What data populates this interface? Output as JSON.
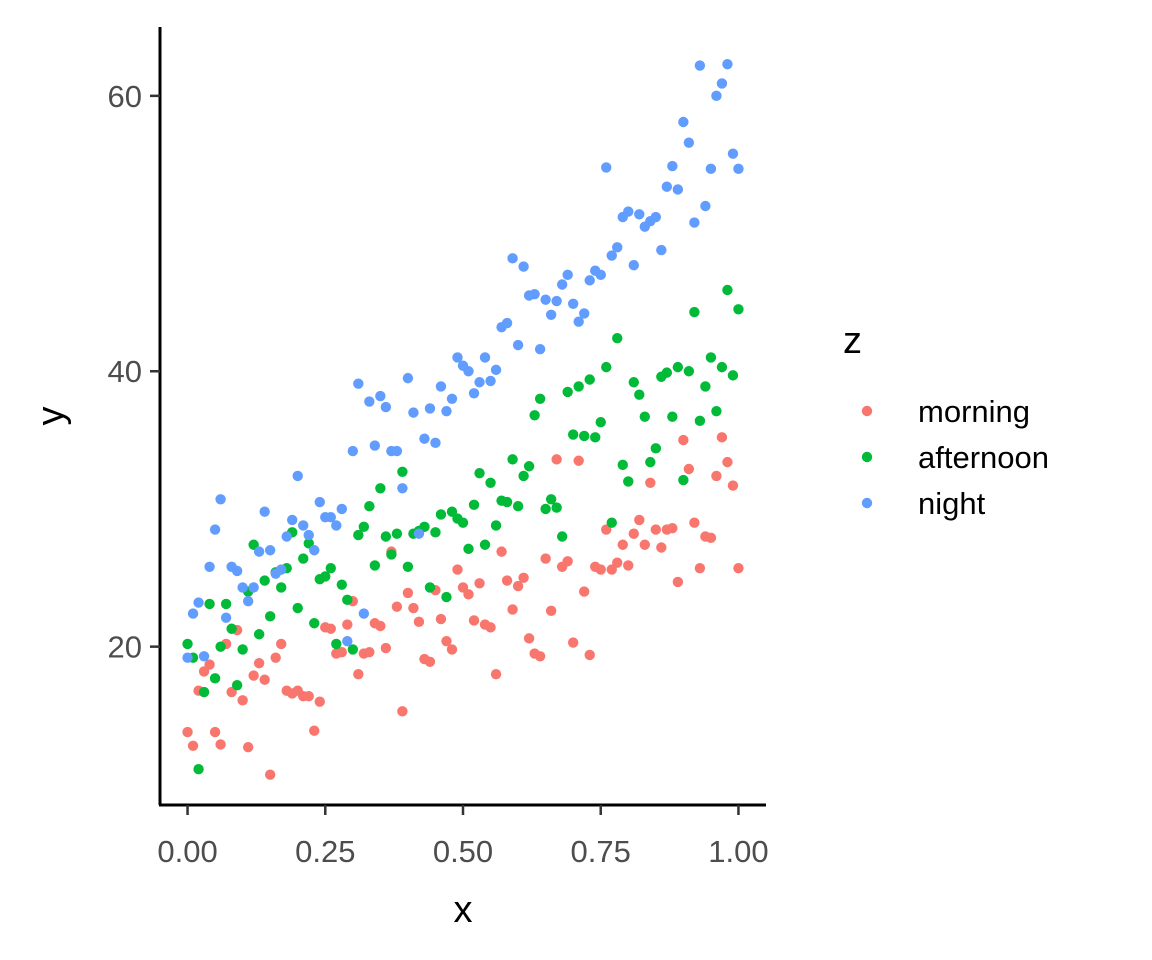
{
  "chart_data": {
    "type": "scatter",
    "xlabel": "x",
    "ylabel": "y",
    "xlim": [
      -0.05,
      1.05
    ],
    "ylim": [
      8.5,
      65
    ],
    "x_ticks": [
      0,
      0.25,
      0.5,
      0.75,
      1
    ],
    "x_tick_labels": [
      "0.00",
      "0.25",
      "0.50",
      "0.75",
      "1.00"
    ],
    "y_ticks": [
      20,
      40,
      60
    ],
    "y_tick_labels": [
      "20",
      "40",
      "60"
    ],
    "grid": false,
    "legend": {
      "title": "z",
      "position": "right",
      "entries": [
        "morning",
        "afternoon",
        "night"
      ]
    },
    "series": [
      {
        "name": "morning",
        "color": "#F8766D",
        "points": [
          [
            0.0,
            13.8
          ],
          [
            0.01,
            12.8
          ],
          [
            0.02,
            16.8
          ],
          [
            0.03,
            18.2
          ],
          [
            0.04,
            18.7
          ],
          [
            0.05,
            13.8
          ],
          [
            0.06,
            12.9
          ],
          [
            0.07,
            20.2
          ],
          [
            0.08,
            16.7
          ],
          [
            0.09,
            21.2
          ],
          [
            0.1,
            16.1
          ],
          [
            0.11,
            12.7
          ],
          [
            0.12,
            17.9
          ],
          [
            0.13,
            18.8
          ],
          [
            0.14,
            17.6
          ],
          [
            0.15,
            10.7
          ],
          [
            0.16,
            19.2
          ],
          [
            0.17,
            20.2
          ],
          [
            0.18,
            16.8
          ],
          [
            0.19,
            16.6
          ],
          [
            0.2,
            16.8
          ],
          [
            0.21,
            16.4
          ],
          [
            0.22,
            16.4
          ],
          [
            0.23,
            13.9
          ],
          [
            0.24,
            16.0
          ],
          [
            0.25,
            21.4
          ],
          [
            0.26,
            21.3
          ],
          [
            0.27,
            19.5
          ],
          [
            0.28,
            19.6
          ],
          [
            0.29,
            21.6
          ],
          [
            0.3,
            23.3
          ],
          [
            0.31,
            18.0
          ],
          [
            0.32,
            19.5
          ],
          [
            0.33,
            19.6
          ],
          [
            0.34,
            21.7
          ],
          [
            0.35,
            21.5
          ],
          [
            0.36,
            19.9
          ],
          [
            0.37,
            26.9
          ],
          [
            0.38,
            22.9
          ],
          [
            0.39,
            15.3
          ],
          [
            0.4,
            23.9
          ],
          [
            0.41,
            22.8
          ],
          [
            0.42,
            21.8
          ],
          [
            0.43,
            19.1
          ],
          [
            0.44,
            18.9
          ],
          [
            0.45,
            24.1
          ],
          [
            0.46,
            22.0
          ],
          [
            0.47,
            20.4
          ],
          [
            0.48,
            19.8
          ],
          [
            0.49,
            25.6
          ],
          [
            0.5,
            24.3
          ],
          [
            0.51,
            23.8
          ],
          [
            0.52,
            21.9
          ],
          [
            0.53,
            24.6
          ],
          [
            0.54,
            21.6
          ],
          [
            0.55,
            21.4
          ],
          [
            0.56,
            18.0
          ],
          [
            0.57,
            26.9
          ],
          [
            0.58,
            24.8
          ],
          [
            0.59,
            22.7
          ],
          [
            0.6,
            24.4
          ],
          [
            0.61,
            25.0
          ],
          [
            0.62,
            20.6
          ],
          [
            0.63,
            19.5
          ],
          [
            0.64,
            19.3
          ],
          [
            0.65,
            26.4
          ],
          [
            0.66,
            22.6
          ],
          [
            0.67,
            33.6
          ],
          [
            0.68,
            25.8
          ],
          [
            0.69,
            26.2
          ],
          [
            0.7,
            20.3
          ],
          [
            0.71,
            33.5
          ],
          [
            0.72,
            24.0
          ],
          [
            0.73,
            19.4
          ],
          [
            0.74,
            25.8
          ],
          [
            0.75,
            25.6
          ],
          [
            0.76,
            28.5
          ],
          [
            0.77,
            25.6
          ],
          [
            0.78,
            26.1
          ],
          [
            0.79,
            27.4
          ],
          [
            0.8,
            25.9
          ],
          [
            0.81,
            28.2
          ],
          [
            0.82,
            29.2
          ],
          [
            0.83,
            27.4
          ],
          [
            0.84,
            31.9
          ],
          [
            0.85,
            28.5
          ],
          [
            0.86,
            27.2
          ],
          [
            0.87,
            28.5
          ],
          [
            0.88,
            28.6
          ],
          [
            0.89,
            24.7
          ],
          [
            0.9,
            35.0
          ],
          [
            0.91,
            32.9
          ],
          [
            0.92,
            29.0
          ],
          [
            0.93,
            25.7
          ],
          [
            0.94,
            28.0
          ],
          [
            0.95,
            27.9
          ],
          [
            0.96,
            32.4
          ],
          [
            0.97,
            35.2
          ],
          [
            0.98,
            33.4
          ],
          [
            0.99,
            31.7
          ],
          [
            1.0,
            25.7
          ]
        ]
      },
      {
        "name": "afternoon",
        "color": "#00BA38",
        "points": [
          [
            0.0,
            20.2
          ],
          [
            0.01,
            19.2
          ],
          [
            0.02,
            11.1
          ],
          [
            0.03,
            16.7
          ],
          [
            0.04,
            23.1
          ],
          [
            0.05,
            17.7
          ],
          [
            0.06,
            20.0
          ],
          [
            0.07,
            23.1
          ],
          [
            0.08,
            21.3
          ],
          [
            0.09,
            17.2
          ],
          [
            0.1,
            19.8
          ],
          [
            0.11,
            24.0
          ],
          [
            0.12,
            27.4
          ],
          [
            0.13,
            20.9
          ],
          [
            0.14,
            24.8
          ],
          [
            0.15,
            22.2
          ],
          [
            0.16,
            25.4
          ],
          [
            0.17,
            24.3
          ],
          [
            0.18,
            25.7
          ],
          [
            0.19,
            28.3
          ],
          [
            0.2,
            22.8
          ],
          [
            0.21,
            26.4
          ],
          [
            0.22,
            27.5
          ],
          [
            0.23,
            21.7
          ],
          [
            0.24,
            24.9
          ],
          [
            0.25,
            25.1
          ],
          [
            0.26,
            25.7
          ],
          [
            0.27,
            20.2
          ],
          [
            0.28,
            24.5
          ],
          [
            0.29,
            23.4
          ],
          [
            0.3,
            19.8
          ],
          [
            0.31,
            28.1
          ],
          [
            0.32,
            28.7
          ],
          [
            0.33,
            30.2
          ],
          [
            0.34,
            25.9
          ],
          [
            0.35,
            31.5
          ],
          [
            0.36,
            28.0
          ],
          [
            0.37,
            26.7
          ],
          [
            0.38,
            28.2
          ],
          [
            0.39,
            32.7
          ],
          [
            0.4,
            25.8
          ],
          [
            0.41,
            28.2
          ],
          [
            0.42,
            28.4
          ],
          [
            0.43,
            28.7
          ],
          [
            0.44,
            24.3
          ],
          [
            0.45,
            28.3
          ],
          [
            0.46,
            29.6
          ],
          [
            0.47,
            23.6
          ],
          [
            0.48,
            29.8
          ],
          [
            0.49,
            29.3
          ],
          [
            0.5,
            29.0
          ],
          [
            0.51,
            27.1
          ],
          [
            0.52,
            30.3
          ],
          [
            0.53,
            32.6
          ],
          [
            0.54,
            27.4
          ],
          [
            0.55,
            31.9
          ],
          [
            0.56,
            28.8
          ],
          [
            0.57,
            30.6
          ],
          [
            0.58,
            30.5
          ],
          [
            0.59,
            33.6
          ],
          [
            0.6,
            30.2
          ],
          [
            0.61,
            32.4
          ],
          [
            0.62,
            33.1
          ],
          [
            0.63,
            36.8
          ],
          [
            0.64,
            38.0
          ],
          [
            0.65,
            30.0
          ],
          [
            0.66,
            30.7
          ],
          [
            0.67,
            30.1
          ],
          [
            0.68,
            28.0
          ],
          [
            0.69,
            38.5
          ],
          [
            0.7,
            35.4
          ],
          [
            0.71,
            38.9
          ],
          [
            0.72,
            35.3
          ],
          [
            0.73,
            39.4
          ],
          [
            0.74,
            35.2
          ],
          [
            0.75,
            36.3
          ],
          [
            0.76,
            40.3
          ],
          [
            0.77,
            29.0
          ],
          [
            0.78,
            42.4
          ],
          [
            0.79,
            33.2
          ],
          [
            0.8,
            32.0
          ],
          [
            0.81,
            39.2
          ],
          [
            0.82,
            38.3
          ],
          [
            0.83,
            36.7
          ],
          [
            0.84,
            33.4
          ],
          [
            0.85,
            34.4
          ],
          [
            0.86,
            39.6
          ],
          [
            0.87,
            39.9
          ],
          [
            0.88,
            36.7
          ],
          [
            0.89,
            40.3
          ],
          [
            0.9,
            32.1
          ],
          [
            0.91,
            40.0
          ],
          [
            0.92,
            44.3
          ],
          [
            0.93,
            36.4
          ],
          [
            0.94,
            38.9
          ],
          [
            0.95,
            41.0
          ],
          [
            0.96,
            37.1
          ],
          [
            0.97,
            40.3
          ],
          [
            0.98,
            45.9
          ],
          [
            0.99,
            39.7
          ],
          [
            1.0,
            44.5
          ]
        ]
      },
      {
        "name": "night",
        "color": "#619CFF",
        "points": [
          [
            0.0,
            19.2
          ],
          [
            0.01,
            22.4
          ],
          [
            0.02,
            23.2
          ],
          [
            0.03,
            19.3
          ],
          [
            0.04,
            25.8
          ],
          [
            0.05,
            28.5
          ],
          [
            0.06,
            30.7
          ],
          [
            0.07,
            22.1
          ],
          [
            0.08,
            25.8
          ],
          [
            0.09,
            25.5
          ],
          [
            0.1,
            24.3
          ],
          [
            0.11,
            23.3
          ],
          [
            0.12,
            24.3
          ],
          [
            0.13,
            26.9
          ],
          [
            0.14,
            29.8
          ],
          [
            0.15,
            27.0
          ],
          [
            0.16,
            25.3
          ],
          [
            0.17,
            25.6
          ],
          [
            0.18,
            28.0
          ],
          [
            0.19,
            29.2
          ],
          [
            0.2,
            32.4
          ],
          [
            0.21,
            28.8
          ],
          [
            0.22,
            28.1
          ],
          [
            0.23,
            27.0
          ],
          [
            0.24,
            30.5
          ],
          [
            0.25,
            29.4
          ],
          [
            0.26,
            29.4
          ],
          [
            0.27,
            28.8
          ],
          [
            0.28,
            30.0
          ],
          [
            0.29,
            20.4
          ],
          [
            0.3,
            34.2
          ],
          [
            0.31,
            39.1
          ],
          [
            0.32,
            22.4
          ],
          [
            0.33,
            37.8
          ],
          [
            0.34,
            34.6
          ],
          [
            0.35,
            38.2
          ],
          [
            0.36,
            37.4
          ],
          [
            0.37,
            34.2
          ],
          [
            0.38,
            34.2
          ],
          [
            0.39,
            31.5
          ],
          [
            0.4,
            39.5
          ],
          [
            0.41,
            37.0
          ],
          [
            0.42,
            28.2
          ],
          [
            0.43,
            35.1
          ],
          [
            0.44,
            37.3
          ],
          [
            0.45,
            34.8
          ],
          [
            0.46,
            38.9
          ],
          [
            0.47,
            37.1
          ],
          [
            0.48,
            38.0
          ],
          [
            0.49,
            41.0
          ],
          [
            0.5,
            40.4
          ],
          [
            0.51,
            40.0
          ],
          [
            0.52,
            38.4
          ],
          [
            0.53,
            39.2
          ],
          [
            0.54,
            41.0
          ],
          [
            0.55,
            39.3
          ],
          [
            0.56,
            40.1
          ],
          [
            0.57,
            43.2
          ],
          [
            0.58,
            43.5
          ],
          [
            0.59,
            48.2
          ],
          [
            0.6,
            41.9
          ],
          [
            0.61,
            47.6
          ],
          [
            0.62,
            45.5
          ],
          [
            0.63,
            45.6
          ],
          [
            0.64,
            41.6
          ],
          [
            0.65,
            45.2
          ],
          [
            0.66,
            44.1
          ],
          [
            0.67,
            45.1
          ],
          [
            0.68,
            46.3
          ],
          [
            0.69,
            47.0
          ],
          [
            0.7,
            44.9
          ],
          [
            0.71,
            43.6
          ],
          [
            0.72,
            44.2
          ],
          [
            0.73,
            46.6
          ],
          [
            0.74,
            47.3
          ],
          [
            0.75,
            47.0
          ],
          [
            0.76,
            54.8
          ],
          [
            0.77,
            48.4
          ],
          [
            0.78,
            49.0
          ],
          [
            0.79,
            51.2
          ],
          [
            0.8,
            51.6
          ],
          [
            0.81,
            47.7
          ],
          [
            0.82,
            51.4
          ],
          [
            0.83,
            50.5
          ],
          [
            0.84,
            50.9
          ],
          [
            0.85,
            51.2
          ],
          [
            0.86,
            48.8
          ],
          [
            0.87,
            53.4
          ],
          [
            0.88,
            54.9
          ],
          [
            0.89,
            53.2
          ],
          [
            0.9,
            58.1
          ],
          [
            0.91,
            56.6
          ],
          [
            0.92,
            50.8
          ],
          [
            0.93,
            62.2
          ],
          [
            0.94,
            52.0
          ],
          [
            0.95,
            54.7
          ],
          [
            0.96,
            60.0
          ],
          [
            0.97,
            60.9
          ],
          [
            0.98,
            62.3
          ],
          [
            0.99,
            55.8
          ],
          [
            1.0,
            54.7
          ]
        ]
      }
    ]
  }
}
